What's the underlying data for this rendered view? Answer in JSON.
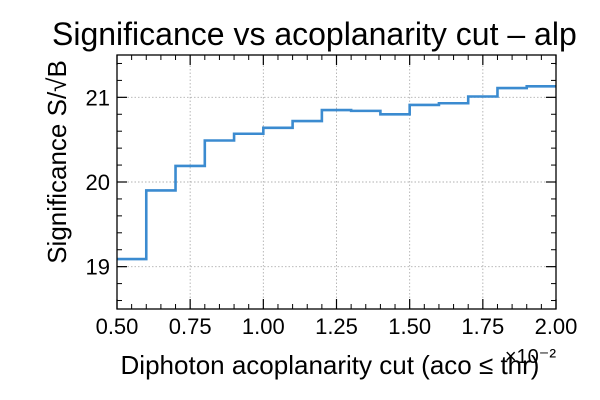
{
  "chart_data": {
    "type": "line",
    "step": "post",
    "title": "Significance vs acoplanarity cut – alp",
    "xlabel": "Diphoton acoplanarity cut (aco ≤ thr)",
    "ylabel": "Significance S/√B",
    "x_offset_label": "×10⁻²",
    "xlim": [
      0.5,
      2.0
    ],
    "ylim": [
      18.5,
      21.5
    ],
    "x_ticks": [
      "0.50",
      "0.75",
      "1.00",
      "1.25",
      "1.50",
      "1.75",
      "2.00"
    ],
    "x_tick_values": [
      0.5,
      0.75,
      1.0,
      1.25,
      1.5,
      1.75,
      2.0
    ],
    "y_ticks": [
      "19",
      "20",
      "21"
    ],
    "y_tick_values": [
      19,
      20,
      21
    ],
    "grid": true,
    "color": "#3b8bd0",
    "series": [
      {
        "x": [
          0.5,
          0.6,
          0.7,
          0.8,
          0.9,
          1.0,
          1.1,
          1.2,
          1.3,
          1.4,
          1.5,
          1.6,
          1.7,
          1.8,
          1.9
        ],
        "y": [
          19.09,
          19.9,
          20.19,
          20.49,
          20.57,
          20.64,
          20.72,
          20.85,
          20.84,
          20.8,
          20.91,
          20.93,
          21.01,
          21.11,
          21.13
        ]
      }
    ]
  }
}
